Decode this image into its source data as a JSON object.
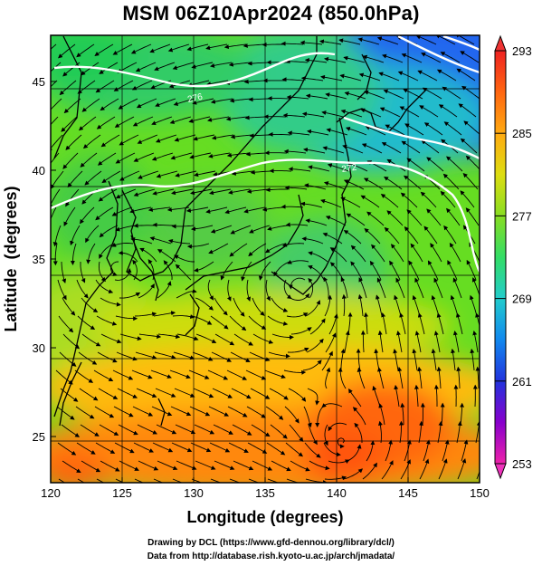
{
  "title": "MSM 06Z10Apr2024 (850.0hPa)",
  "axes": {
    "xlabel": "Longitude (degrees)",
    "ylabel": "Latitude  (degrees)",
    "xticks": [
      120,
      125,
      130,
      135,
      140,
      145,
      150
    ],
    "yticks": [
      25,
      30,
      35,
      40,
      45
    ],
    "xlim": [
      120,
      150
    ],
    "ylim": [
      22.4,
      47.6
    ]
  },
  "colorbar": {
    "ticks": [
      293,
      285,
      277,
      269,
      261,
      253
    ],
    "range": [
      253,
      293
    ],
    "colors": [
      "#ee22aa",
      "#8800cc",
      "#2233dd",
      "#1188ee",
      "#22cccc",
      "#33dd66",
      "#88dd22",
      "#dddd11",
      "#ffaa11",
      "#ff6611",
      "#ee2222"
    ]
  },
  "contours": {
    "labels": [
      "276",
      "272"
    ]
  },
  "features": {
    "lows": [
      [
        124.5,
        34.5
      ],
      [
        137.5,
        33.5
      ],
      [
        140.5,
        24.5
      ]
    ]
  },
  "credits": {
    "line1": "Drawing by DCL (https://www.gfd-dennou.org/library/dcl/)",
    "line2": "Data from http://database.rish.kyoto-u.ac.jp/arch/jmadata/"
  }
}
